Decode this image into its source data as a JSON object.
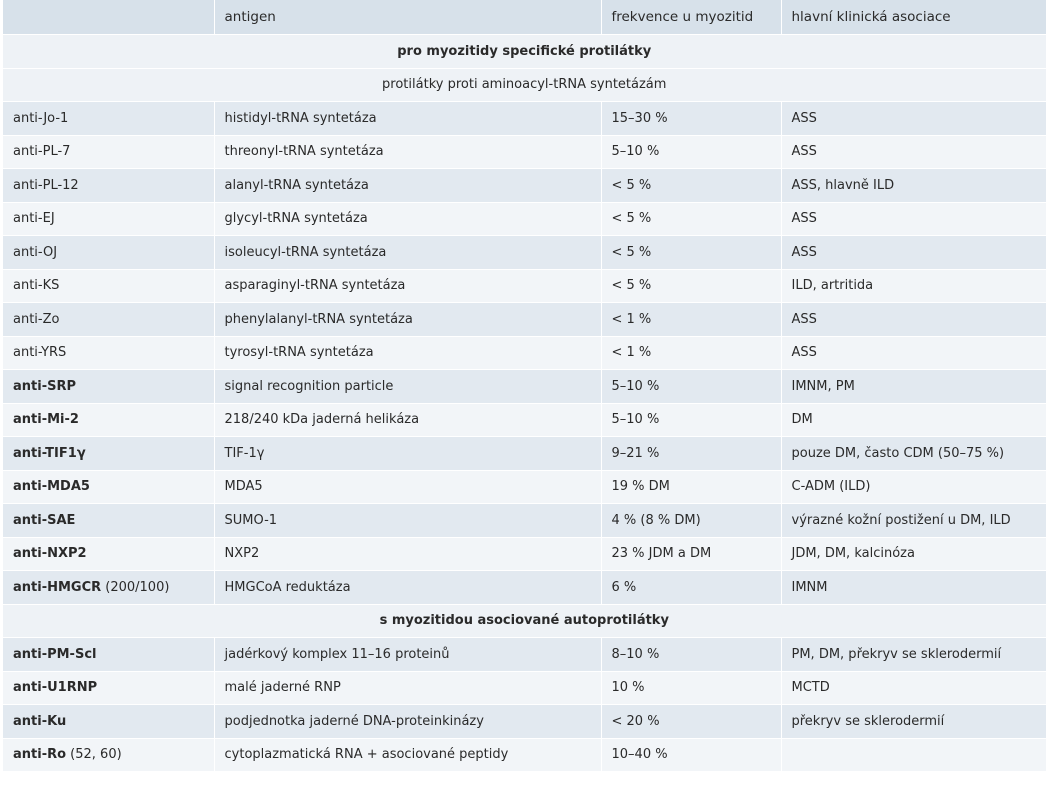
{
  "header": {
    "col1": "",
    "col2": "antigen",
    "col3": "frekvence u myozitid",
    "col4": "hlavní klinická asociace"
  },
  "sections": {
    "specific": "pro myozitidy specifické protilátky",
    "synthetase": "protilátky proti aminoacyl-tRNA syntetázám",
    "associated": "s myozitidou asociované autoprotilátky"
  },
  "synthetase_rows": [
    {
      "antibody": "anti-Jo-1",
      "antigen": "histidyl-tRNA syntetáza",
      "frequency": "15–30 %",
      "association": "ASS"
    },
    {
      "antibody": "anti-PL-7",
      "antigen": "threonyl-tRNA syntetáza",
      "frequency": "5–10 %",
      "association": "ASS"
    },
    {
      "antibody": "anti-PL-12",
      "antigen": "alanyl-tRNA syntetáza",
      "frequency": "< 5 %",
      "association": "ASS, hlavně ILD"
    },
    {
      "antibody": "anti-EJ",
      "antigen": "glycyl-tRNA syntetáza",
      "frequency": "< 5 %",
      "association": "ASS"
    },
    {
      "antibody": "anti-OJ",
      "antigen": "isoleucyl-tRNA syntetáza",
      "frequency": "< 5 %",
      "association": "ASS"
    },
    {
      "antibody": "anti-KS",
      "antigen": "asparaginyl-tRNA syntetáza",
      "frequency": "< 5 %",
      "association": "ILD, artritida"
    },
    {
      "antibody": "anti-Zo",
      "antigen": "phenylalanyl-tRNA syntetáza",
      "frequency": "< 1 %",
      "association": "ASS"
    },
    {
      "antibody": "anti-YRS",
      "antigen": "tyrosyl-tRNA syntetáza",
      "frequency": "< 1 %",
      "association": "ASS"
    }
  ],
  "specific_rows": [
    {
      "antibody": "anti-SRP",
      "antigen": "signal recognition particle",
      "frequency": "5–10 %",
      "association": "IMNM, PM"
    },
    {
      "antibody": "anti-Mi-2",
      "antigen": "218/240 kDa jaderná helikáza",
      "frequency": "5–10 %",
      "association": "DM"
    },
    {
      "antibody": "anti-TIF1γ",
      "antigen": "TIF-1γ",
      "frequency": "9–21 %",
      "association": "pouze DM, často CDM (50–75 %)"
    },
    {
      "antibody": "anti-MDA5",
      "antigen": "MDA5",
      "frequency": "19 % DM",
      "association": "C-ADM (ILD)"
    },
    {
      "antibody": "anti-SAE",
      "antigen": "SUMO-1",
      "frequency": "4 % (8 % DM)",
      "association": "výrazné kožní postižení u DM, ILD"
    },
    {
      "antibody": "anti-NXP2",
      "antigen": "NXP2",
      "frequency": "23 % JDM a DM",
      "association": "JDM, DM, kalcinóza"
    },
    {
      "antibody": "anti-HMGCR",
      "antibody_suffix": " (200/100)",
      "antigen": "HMGCoA reduktáza",
      "frequency": "6 %",
      "association": "IMNM"
    }
  ],
  "associated_rows": [
    {
      "antibody": "anti-PM-Scl",
      "antigen": "jadérkový komplex 11–16 proteinů",
      "frequency": "8–10 %",
      "association": "PM, DM, překryv se sklerodermií"
    },
    {
      "antibody": "anti-U1RNP",
      "antigen": "malé jaderné RNP",
      "frequency": "10 %",
      "association": "MCTD"
    },
    {
      "antibody": "anti-Ku",
      "antigen": "podjednotka jaderné DNA-proteinkinázy",
      "frequency": "< 20 %",
      "association": "překryv se sklerodermií"
    },
    {
      "antibody": "anti-Ro",
      "antibody_suffix": " (52, 60)",
      "antigen": "cytoplazmatická RNA + asociované peptidy",
      "frequency": "10–40 %",
      "association": ""
    }
  ],
  "colors": {
    "header": "#d7e1ea",
    "row_odd": "#e2e9f0",
    "row_even": "#f2f5f8",
    "section": "#eef2f6"
  }
}
